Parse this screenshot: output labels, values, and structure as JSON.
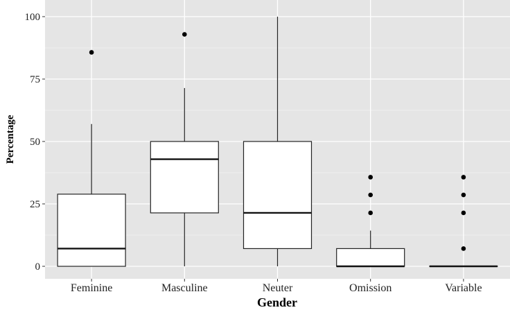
{
  "chart_data": {
    "type": "boxplot",
    "title": "",
    "xlabel": "Gender",
    "ylabel": "Percentage",
    "ylim": [
      -5,
      104
    ],
    "y_ticks": [
      0,
      25,
      50,
      75,
      100
    ],
    "grid": true,
    "categories": [
      "Feminine",
      "Masculine",
      "Neuter",
      "Omission",
      "Variable"
    ],
    "boxes": [
      {
        "category": "Feminine",
        "whisker_low": 0,
        "q1": 0,
        "median": 7.1,
        "q3": 28.9,
        "whisker_high": 57,
        "outliers": [
          85.7
        ]
      },
      {
        "category": "Masculine",
        "whisker_low": 0,
        "q1": 21.4,
        "median": 42.9,
        "q3": 50,
        "whisker_high": 71.4,
        "outliers": [
          92.9
        ]
      },
      {
        "category": "Neuter",
        "whisker_low": 0,
        "q1": 7.1,
        "median": 21.4,
        "q3": 50,
        "whisker_high": 100,
        "outliers": []
      },
      {
        "category": "Omission",
        "whisker_low": 0,
        "q1": 0,
        "median": 0,
        "q3": 7.1,
        "whisker_high": 14.3,
        "outliers": [
          21.4,
          28.6,
          35.7
        ]
      },
      {
        "category": "Variable",
        "whisker_low": 0,
        "q1": 0,
        "median": 0,
        "q3": 0,
        "whisker_high": 0,
        "outliers": [
          7.1,
          21.4,
          28.6,
          35.7
        ]
      }
    ]
  },
  "colors": {
    "panel_background": "#e5e5e5",
    "grid_major": "#ffffff",
    "grid_minor": "#f0f0f0",
    "box_fill": "#ffffff",
    "box_stroke": "#222222",
    "median_stroke": "#111111",
    "outlier_fill": "#000000"
  }
}
